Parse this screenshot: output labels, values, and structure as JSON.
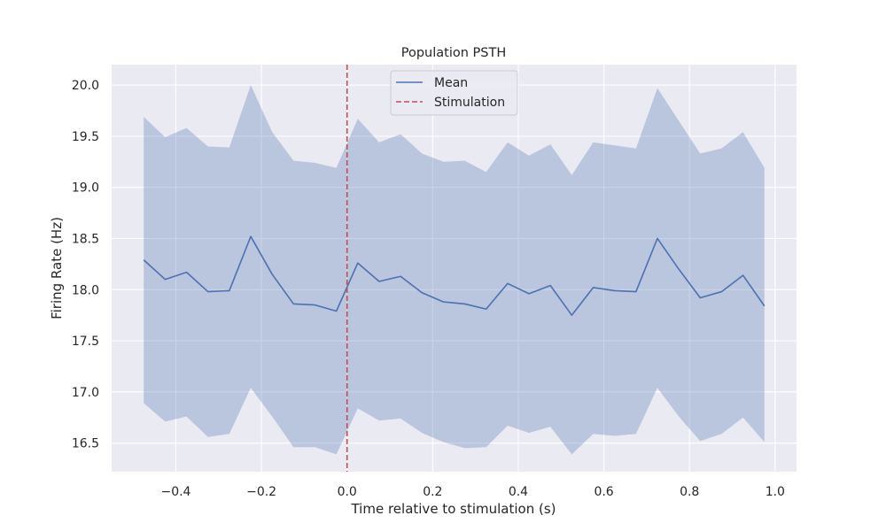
{
  "chart_data": {
    "type": "line",
    "title": "Population PSTH",
    "xlabel": "Time relative to stimulation (s)",
    "ylabel": "Firing Rate (Hz)",
    "xlim": [
      -0.55,
      1.05
    ],
    "ylim": [
      16.22,
      20.2
    ],
    "xticks": [
      -0.4,
      -0.2,
      0.0,
      0.2,
      0.4,
      0.6,
      0.8,
      1.0
    ],
    "xtick_labels": [
      "−0.4",
      "−0.2",
      "0.0",
      "0.2",
      "0.4",
      "0.6",
      "0.8",
      "1.0"
    ],
    "yticks": [
      16.5,
      17.0,
      17.5,
      18.0,
      18.5,
      19.0,
      19.5,
      20.0
    ],
    "ytick_labels": [
      "16.5",
      "17.0",
      "17.5",
      "18.0",
      "18.5",
      "19.0",
      "19.5",
      "20.0"
    ],
    "grid": true,
    "legend_position": "top-center",
    "x": [
      -0.475,
      -0.425,
      -0.375,
      -0.325,
      -0.275,
      -0.225,
      -0.175,
      -0.125,
      -0.075,
      -0.025,
      0.025,
      0.075,
      0.125,
      0.175,
      0.225,
      0.275,
      0.325,
      0.375,
      0.425,
      0.475,
      0.525,
      0.575,
      0.625,
      0.675,
      0.725,
      0.775,
      0.825,
      0.875,
      0.925,
      0.975
    ],
    "series": [
      {
        "name": "Mean",
        "color": "#4c72b0",
        "values": [
          18.29,
          18.1,
          18.17,
          17.98,
          17.99,
          18.52,
          18.15,
          17.86,
          17.85,
          17.79,
          18.26,
          18.08,
          18.13,
          17.97,
          17.88,
          17.86,
          17.81,
          18.06,
          17.96,
          18.04,
          17.75,
          18.02,
          17.99,
          17.98,
          18.5,
          18.2,
          17.92,
          17.98,
          18.14,
          17.84
        ]
      }
    ],
    "band": {
      "color": "#4c72b0",
      "opacity": 0.3,
      "upper": [
        19.69,
        19.49,
        19.58,
        19.4,
        19.39,
        20.0,
        19.54,
        19.26,
        19.24,
        19.19,
        19.67,
        19.44,
        19.52,
        19.33,
        19.25,
        19.26,
        19.15,
        19.44,
        19.31,
        19.42,
        19.12,
        19.44,
        19.41,
        19.38,
        19.97,
        19.65,
        19.33,
        19.38,
        19.54,
        19.19
      ],
      "lower": [
        16.89,
        16.71,
        16.76,
        16.56,
        16.59,
        17.04,
        16.76,
        16.46,
        16.46,
        16.39,
        16.84,
        16.72,
        16.74,
        16.6,
        16.51,
        16.45,
        16.46,
        16.67,
        16.6,
        16.66,
        16.39,
        16.59,
        16.57,
        16.59,
        17.04,
        16.76,
        16.52,
        16.59,
        16.75,
        16.51
      ]
    },
    "vline": {
      "name": "Stimulation",
      "x": 0.0,
      "color": "#c44e52",
      "style": "dashed"
    },
    "legend": [
      {
        "label": "Mean",
        "style": "line",
        "color": "#4c72b0"
      },
      {
        "label": "Stimulation",
        "style": "dashed",
        "color": "#c44e52"
      }
    ]
  }
}
